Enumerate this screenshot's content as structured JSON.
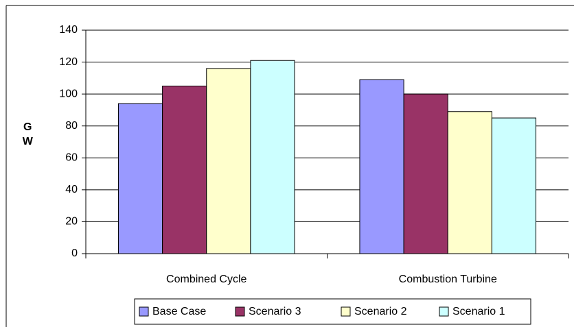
{
  "chart_data": {
    "type": "bar",
    "y_label": "GW",
    "categories": [
      "Combined Cycle",
      "Combustion Turbine"
    ],
    "series": [
      {
        "name": "Base Case",
        "color": "#9999ff",
        "values": [
          94,
          109
        ]
      },
      {
        "name": "Scenario 3",
        "color": "#993366",
        "values": [
          105,
          100
        ]
      },
      {
        "name": "Scenario 2",
        "color": "#ffffcc",
        "values": [
          116,
          89
        ]
      },
      {
        "name": "Scenario 1",
        "color": "#ccffff",
        "values": [
          121,
          85
        ]
      }
    ],
    "ylim": [
      0,
      140
    ],
    "yticks": [
      0,
      20,
      40,
      60,
      80,
      100,
      120,
      140
    ],
    "grid": true,
    "legend": "bottom"
  }
}
